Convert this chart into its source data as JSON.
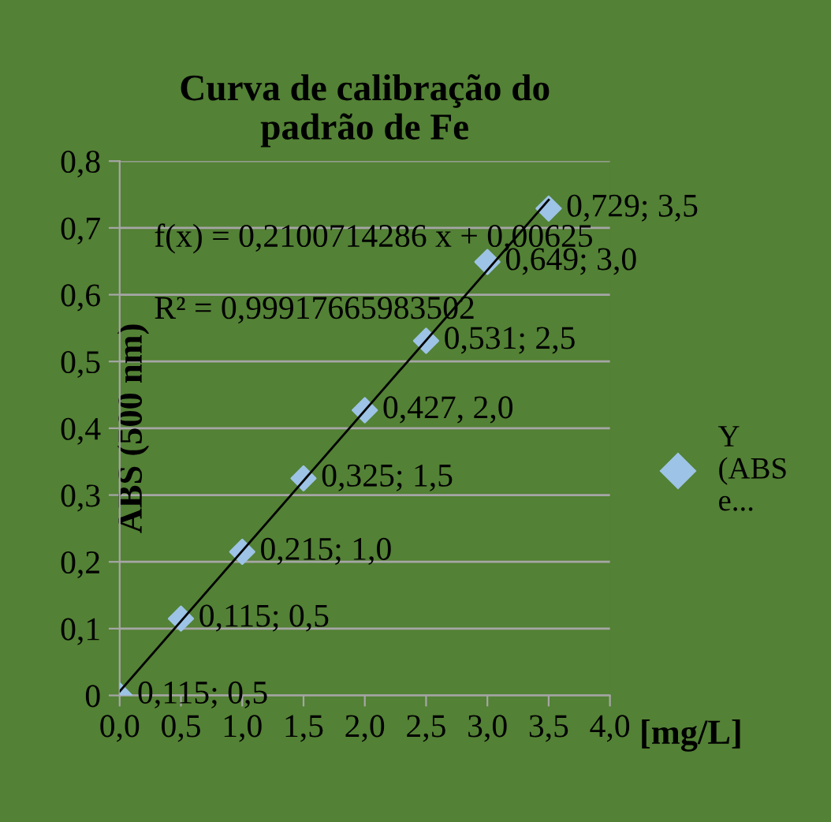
{
  "chart_data": {
    "type": "scatter",
    "title": "Curva de calibração do\npadrão de Fe",
    "xlabel": "[mg/L]",
    "ylabel": "ABS (500 nm)",
    "annotations": [
      "f(x) = 0,2100714286 x + 0,00625",
      "R² = 0,99917665983502"
    ],
    "x": [
      0,
      0.5,
      1.0,
      1.5,
      2.0,
      2.5,
      3.0,
      3.5
    ],
    "series": [
      {
        "name": "Y (ABS e...",
        "color": "#9dc3e6",
        "values": [
          0,
          0.115,
          0.215,
          0.325,
          0.427,
          0.531,
          0.649,
          0.729
        ],
        "value_labels": [
          "0,115; 0,5",
          "0,115; 0,5",
          "0,215; 1,0",
          "0,325; 1,5",
          "0,427, 2,0",
          "0,531; 2,5",
          "0,649; 3,0",
          "0,729; 3,5"
        ]
      },
      {
        "type": "line",
        "x": [
          0,
          3.5
        ],
        "values": [
          0.006,
          0.742
        ],
        "color": "#000000",
        "marker": "none"
      }
    ],
    "xlim": [
      0,
      4
    ],
    "xticks": [
      {
        "value": 0,
        "label": "0,0"
      },
      {
        "value": 0.5,
        "label": "0,5"
      },
      {
        "value": 1,
        "label": "1,0"
      },
      {
        "value": 1.5,
        "label": "1,5"
      },
      {
        "value": 2,
        "label": "2,0"
      },
      {
        "value": 2.5,
        "label": "2,5"
      },
      {
        "value": 3,
        "label": "3,0"
      },
      {
        "value": 3.5,
        "label": "3,5"
      },
      {
        "value": 4,
        "label": "4,0"
      }
    ],
    "ylim": [
      0,
      0.8
    ],
    "yticks": [
      0,
      {
        "value": 0.1,
        "label": "0,1"
      },
      {
        "value": 0.2,
        "label": "0,2"
      },
      {
        "value": 0.3,
        "label": "0,3"
      },
      {
        "value": 0.4,
        "label": "0,4"
      },
      {
        "value": 0.5,
        "label": "0,5"
      },
      {
        "value": 0.6,
        "label": "0,6"
      },
      {
        "value": 0.7,
        "label": "0,7"
      },
      {
        "value": 0.8,
        "label": "0,8"
      }
    ],
    "grid": "y",
    "legend": "right",
    "marker": "diamond"
  }
}
